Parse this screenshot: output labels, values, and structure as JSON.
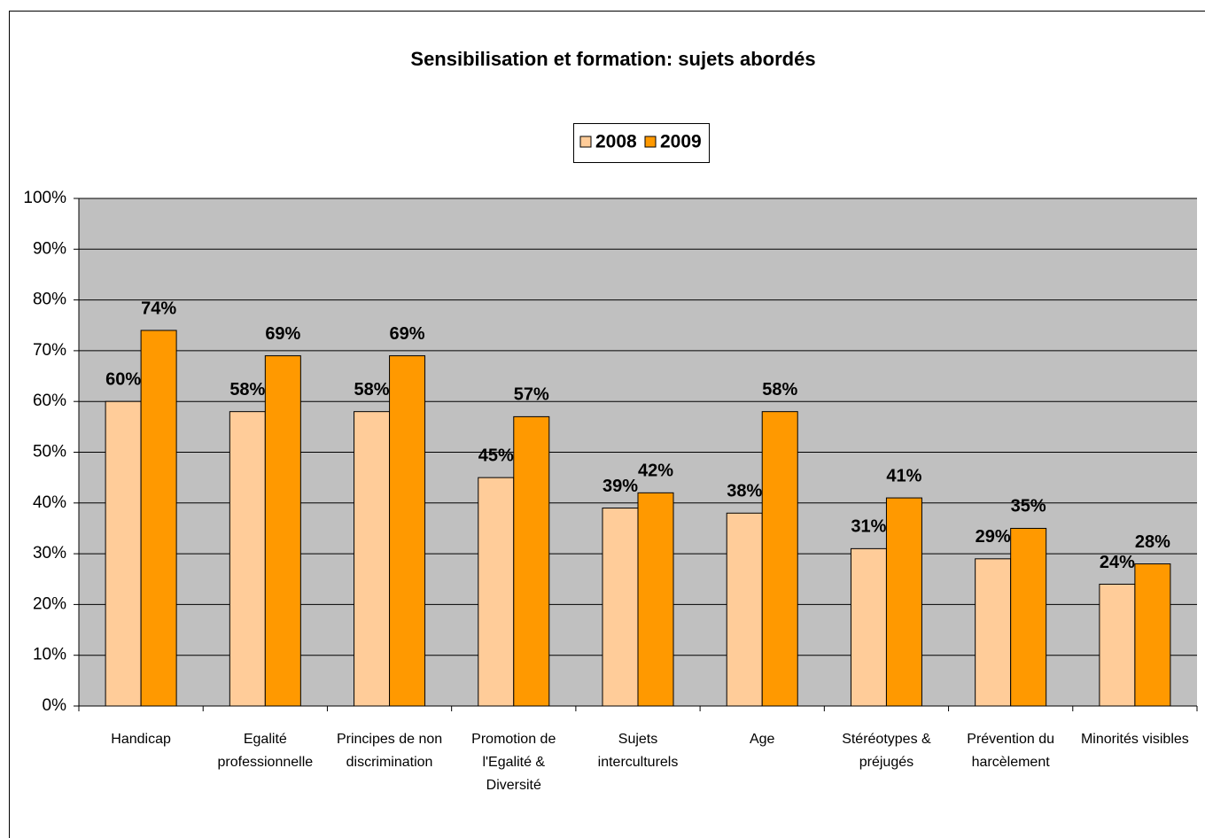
{
  "chart_data": {
    "type": "bar",
    "title": "Sensibilisation et formation: sujets abordés",
    "categories": [
      "Handicap",
      "Egalité professionnelle",
      "Principes de non discrimination",
      "Promotion de l'Egalité & Diversité",
      "Sujets interculturels",
      "Age",
      "Stéréotypes & préjugés",
      "Prévention du harcèlement",
      "Minorités visibles"
    ],
    "series": [
      {
        "name": "2008",
        "color": "#ffcc99",
        "values": [
          60,
          58,
          58,
          45,
          39,
          38,
          31,
          29,
          24
        ],
        "value_labels": [
          "60%",
          "58%",
          "58%",
          "45%",
          "39%",
          "38%",
          "31%",
          "29%",
          "24%"
        ]
      },
      {
        "name": "2009",
        "color": "#ff9900",
        "values": [
          74,
          69,
          69,
          57,
          42,
          58,
          41,
          35,
          28
        ],
        "value_labels": [
          "74%",
          "69%",
          "69%",
          "57%",
          "42%",
          "58%",
          "41%",
          "35%",
          "28%"
        ]
      }
    ],
    "ylim": [
      0,
      100
    ],
    "yticks": [
      {
        "value": 0,
        "label": "0%"
      },
      {
        "value": 10,
        "label": "10%"
      },
      {
        "value": 20,
        "label": "20%"
      },
      {
        "value": 30,
        "label": "30%"
      },
      {
        "value": 40,
        "label": "40%"
      },
      {
        "value": 50,
        "label": "50%"
      },
      {
        "value": 60,
        "label": "60%"
      },
      {
        "value": 70,
        "label": "70%"
      },
      {
        "value": 80,
        "label": "80%"
      },
      {
        "value": 90,
        "label": "90%"
      },
      {
        "value": 100,
        "label": "100%"
      }
    ],
    "grid": true,
    "legend": "top"
  }
}
